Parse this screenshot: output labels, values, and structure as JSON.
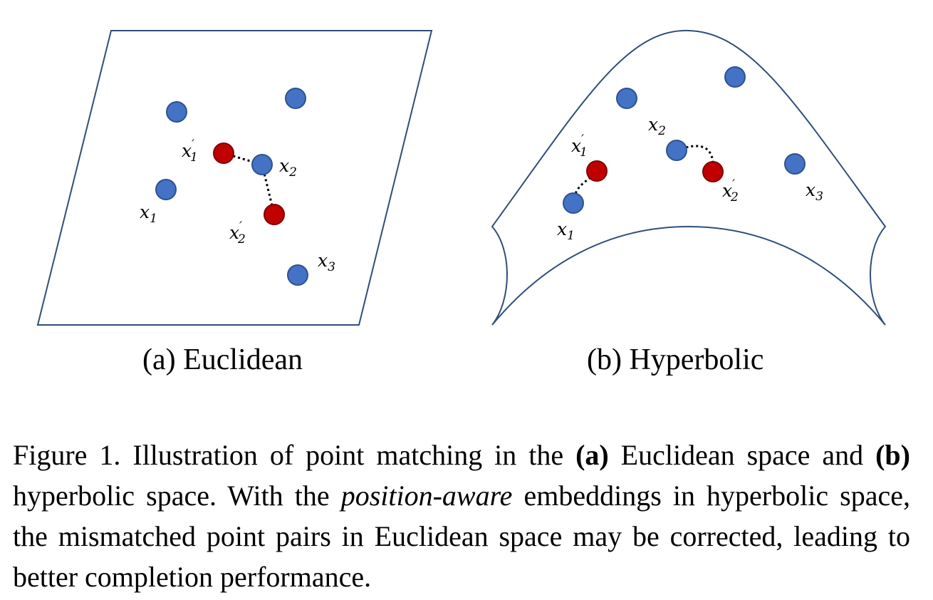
{
  "panels": {
    "euclidean": {
      "caption": "(a) Euclidean",
      "labels": {
        "x1_prime": "x",
        "x1_prime_sub": "1",
        "x2": "x",
        "x2_sub": "2",
        "x1": "x",
        "x1_sub": "1",
        "x2_prime": "x",
        "x2_prime_sub": "2",
        "x3": "x",
        "x3_sub": "3",
        "prime": "′"
      }
    },
    "hyperbolic": {
      "caption": "(b) Hyperbolic",
      "labels": {
        "x2": "x",
        "x2_sub": "2",
        "x1_prime": "x",
        "x1_prime_sub": "1",
        "x2_prime": "x",
        "x2_prime_sub": "2",
        "x3": "x",
        "x3_sub": "3",
        "x1": "x",
        "x1_sub": "1",
        "prime": "′"
      }
    }
  },
  "caption": {
    "prefix": "Figure 1. Illustration of point matching in the ",
    "a_label": "(a)",
    "mid1": " Euclidean space and ",
    "b_label": "(b)",
    "mid2": " hyperbolic space. With the ",
    "emph": "position-aware",
    "suffix": " embeddings in hyperbolic space, the mismatched point pairs in Euclidean space may be corrected, leading to better completion performance."
  },
  "colors": {
    "point_blue": "#4472c4",
    "point_red": "#c00000",
    "outline": "#2f4e7a",
    "point_stroke": "#2f528f",
    "red_stroke": "#7f0000"
  }
}
